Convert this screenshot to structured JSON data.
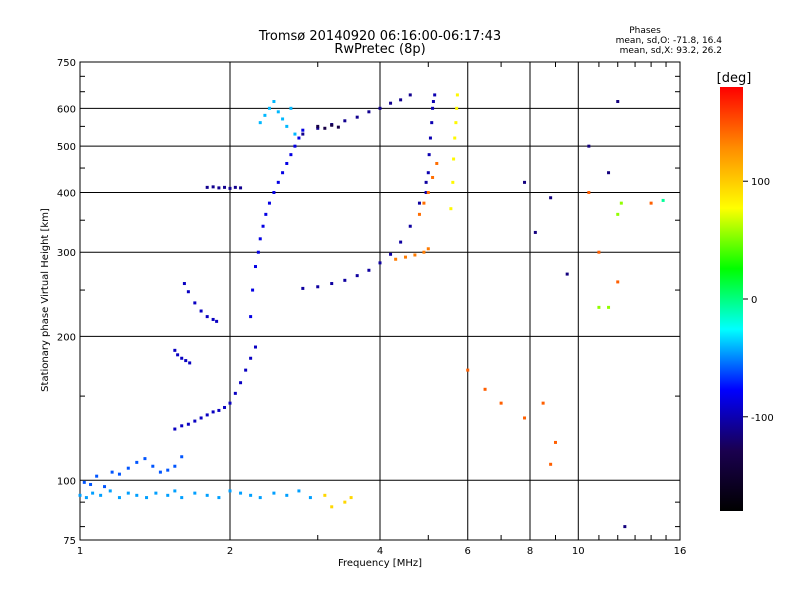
{
  "chart_data": {
    "type": "scatter",
    "title": "Tromsø 20140920 06:16:00-06:17:43",
    "subtitle": "RwPretec (8p)",
    "xlabel": "Frequency [MHz]",
    "ylabel": "Stationary phase Virtual Height [km]",
    "x_scale": "log",
    "y_scale": "log",
    "xlim": [
      1,
      16
    ],
    "ylim": [
      75,
      750
    ],
    "x_ticks": [
      1,
      2,
      4,
      6,
      8,
      10,
      16
    ],
    "y_ticks": [
      75,
      100,
      200,
      300,
      400,
      500,
      600,
      750
    ],
    "grid": true,
    "stats": {
      "heading": "Phases",
      "line_o": "mean, sd,O: -71.8, 16.4",
      "line_x": "mean, sd,X:  93.2, 26.2"
    },
    "colorbar": {
      "label": "[deg]",
      "ticks": [
        100,
        0,
        -100
      ],
      "range": [
        -180,
        180
      ],
      "colors_top_to_bottom": [
        "#ff0000",
        "#ff8c00",
        "#ffff00",
        "#00ff00",
        "#00ffff",
        "#0000ff",
        "#1a0050",
        "#000000"
      ]
    },
    "series": [
      {
        "x": [
          1.0,
          1.03,
          1.06,
          1.1,
          1.15,
          1.2,
          1.25,
          1.3,
          1.36,
          1.42,
          1.5,
          1.55,
          1.6,
          1.7,
          1.8,
          1.9,
          2.0,
          2.1,
          2.2,
          2.3,
          2.45,
          2.6,
          2.75,
          2.9
        ],
        "y": [
          93,
          92,
          94,
          93,
          95,
          92,
          94,
          93,
          92,
          94,
          93,
          95,
          92,
          94,
          93,
          92,
          95,
          94,
          93,
          92,
          94,
          93,
          95,
          92
        ],
        "phase": -45
      },
      {
        "x": [
          1.02,
          1.05,
          1.08,
          1.12,
          1.16,
          1.2,
          1.25,
          1.3,
          1.35,
          1.4,
          1.45,
          1.5,
          1.55,
          1.6
        ],
        "y": [
          99,
          98,
          102,
          97,
          104,
          103,
          106,
          109,
          111,
          107,
          104,
          105,
          107,
          112
        ],
        "phase": -60
      },
      {
        "x": [
          1.55,
          1.6,
          1.65,
          1.7,
          1.75,
          1.8,
          1.85,
          1.9,
          1.95,
          2.0,
          2.05,
          2.1,
          2.15,
          2.2,
          2.25
        ],
        "y": [
          128,
          130,
          131,
          133,
          135,
          137,
          139,
          140,
          142,
          145,
          152,
          160,
          170,
          180,
          190
        ],
        "phase": -95
      },
      {
        "x": [
          1.62,
          1.65,
          1.7,
          1.75,
          1.8,
          1.85,
          1.88
        ],
        "y": [
          258,
          248,
          235,
          226,
          220,
          217,
          215
        ],
        "phase": -95
      },
      {
        "x": [
          1.55,
          1.57,
          1.6,
          1.63,
          1.66
        ],
        "y": [
          187,
          183,
          180,
          178,
          176
        ],
        "phase": -95
      },
      {
        "x": [
          1.8,
          1.85,
          1.9,
          1.95,
          2.0,
          2.05,
          2.1
        ],
        "y": [
          410,
          411,
          409,
          410,
          408,
          410,
          409
        ],
        "phase": -110
      },
      {
        "x": [
          2.2,
          2.22,
          2.25,
          2.28,
          2.3,
          2.33,
          2.36,
          2.4,
          2.45,
          2.5,
          2.55,
          2.6,
          2.65,
          2.7,
          2.75,
          2.8
        ],
        "y": [
          220,
          250,
          280,
          300,
          320,
          340,
          360,
          380,
          400,
          420,
          440,
          460,
          480,
          500,
          520,
          540
        ],
        "phase": -85
      },
      {
        "x": [
          2.3,
          2.35,
          2.4,
          2.45,
          2.5,
          2.55,
          2.6,
          2.65,
          2.7
        ],
        "y": [
          560,
          580,
          600,
          620,
          590,
          570,
          550,
          600,
          530
        ],
        "phase": -40
      },
      {
        "x": [
          2.8,
          3.0,
          3.2,
          3.4,
          3.6,
          3.8,
          4.0,
          4.2,
          4.4,
          4.6,
          4.8,
          4.95
        ],
        "y": [
          252,
          254,
          258,
          262,
          268,
          275,
          285,
          297,
          315,
          340,
          380,
          420
        ],
        "phase": -105
      },
      {
        "x": [
          4.95,
          5.0,
          5.02,
          5.05,
          5.08,
          5.1,
          5.12,
          5.15
        ],
        "y": [
          400,
          440,
          480,
          520,
          560,
          600,
          620,
          640
        ],
        "phase": -100
      },
      {
        "x": [
          2.8,
          3.0,
          3.2,
          3.4,
          3.6,
          3.8,
          4.0,
          4.2,
          4.4,
          4.6
        ],
        "y": [
          530,
          545,
          555,
          565,
          575,
          590,
          600,
          615,
          625,
          640
        ],
        "phase": -110
      },
      {
        "x": [
          3.0,
          3.1,
          3.2,
          3.3
        ],
        "y": [
          550,
          545,
          553,
          548
        ],
        "phase": -135
      },
      {
        "x": [
          5.55,
          5.6,
          5.62,
          5.65,
          5.68,
          5.7,
          5.72
        ],
        "y": [
          370,
          420,
          470,
          520,
          560,
          600,
          640
        ],
        "phase": 80
      },
      {
        "x": [
          4.3,
          4.5,
          4.7,
          4.9,
          5.0
        ],
        "y": [
          290,
          293,
          296,
          300,
          305
        ],
        "phase": 135
      },
      {
        "x": [
          4.8,
          4.9,
          5.0,
          5.1,
          5.2
        ],
        "y": [
          360,
          380,
          400,
          430,
          460
        ],
        "phase": 140
      },
      {
        "x": [
          3.1,
          3.2,
          3.4,
          3.5
        ],
        "y": [
          93,
          88,
          90,
          92
        ],
        "phase": 95
      },
      {
        "x": [
          6.0,
          6.5,
          7.0,
          7.8,
          8.5,
          8.8,
          9.0,
          10.5,
          11.0,
          12.0,
          14.0
        ],
        "y": [
          170,
          155,
          145,
          135,
          145,
          108,
          120,
          400,
          300,
          260,
          380
        ],
        "phase": 145
      },
      {
        "x": [
          7.8,
          8.2,
          8.8,
          9.5,
          10.5,
          11.5,
          12.0,
          12.4
        ],
        "y": [
          420,
          330,
          390,
          270,
          500,
          440,
          620,
          80
        ],
        "phase": -115
      },
      {
        "x": [
          11.0,
          11.5,
          12.0,
          12.2
        ],
        "y": [
          230,
          230,
          360,
          380
        ],
        "phase": 55
      },
      {
        "x": [
          14.8
        ],
        "y": [
          385
        ],
        "phase": -5
      }
    ]
  }
}
